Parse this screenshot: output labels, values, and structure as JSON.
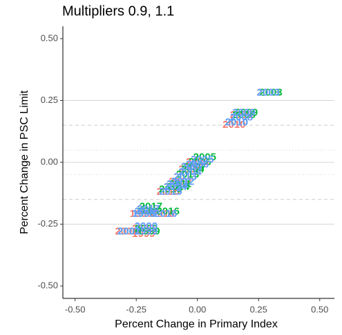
{
  "chart_data": {
    "type": "scatter",
    "title": "Multipliers 0.9, 1.1",
    "x_label": "Percent Change in Primary Index",
    "y_label": "Percent Change in PSC Limit",
    "xlim": [
      -0.55,
      0.56
    ],
    "ylim": [
      -0.55,
      0.55
    ],
    "xticks": [
      {
        "value": -0.5,
        "label": "-0.50"
      },
      {
        "value": -0.25,
        "label": "-0.25"
      },
      {
        "value": 0,
        "label": "0.00"
      },
      {
        "value": 0.25,
        "label": "0.25"
      },
      {
        "value": 0.5,
        "label": "0.50"
      }
    ],
    "yticks": [
      {
        "value": -0.5,
        "label": "-0.50"
      },
      {
        "value": -0.25,
        "label": "-0.25"
      },
      {
        "value": 0,
        "label": "0.00"
      },
      {
        "value": 0.25,
        "label": "0.25"
      },
      {
        "value": 0.5,
        "label": "0.50"
      }
    ],
    "hlines": [
      {
        "value": 0.25,
        "style": "solid"
      },
      {
        "value": 0,
        "style": "solid"
      },
      {
        "value": -0.25,
        "style": "solid"
      },
      {
        "value": 0.15,
        "style": "dashed"
      },
      {
        "value": -0.15,
        "style": "dashed"
      },
      {
        "value": 0.05,
        "style": "dotted"
      },
      {
        "value": -0.05,
        "style": "dotted"
      }
    ],
    "series": [
      {
        "color": "#F8766D",
        "labels": [
          "2003",
          "2009",
          "2008",
          "2010",
          "2005",
          "2006",
          "2007",
          "2004",
          "2013",
          "2012",
          "2011",
          "2014",
          "2015",
          "2017",
          "1998",
          "2001",
          "2016",
          "2000",
          "2002",
          "1999"
        ],
        "x": [
          0.29,
          0.19,
          0.18,
          0.15,
          0.02,
          0.0,
          -0.02,
          -0.03,
          -0.05,
          -0.07,
          -0.08,
          -0.09,
          -0.12,
          -0.2,
          -0.23,
          -0.21,
          -0.14,
          -0.22,
          -0.29,
          -0.22
        ],
        "y": [
          0.28,
          0.2,
          0.19,
          0.15,
          0.01,
          0.0,
          -0.02,
          -0.03,
          -0.06,
          -0.08,
          -0.09,
          -0.1,
          -0.12,
          -0.19,
          -0.21,
          -0.2,
          -0.21,
          -0.27,
          -0.28,
          -0.29
        ]
      },
      {
        "color": "#00BA38",
        "labels": [
          "2003",
          "2009",
          "2008",
          "2010",
          "2005",
          "2006",
          "2007",
          "2004",
          "2013",
          "2012",
          "2011",
          "2014",
          "2015",
          "2017",
          "1998",
          "2001",
          "2016",
          "2000",
          "2002",
          "1999"
        ],
        "x": [
          0.3,
          0.2,
          0.19,
          0.16,
          0.03,
          0.01,
          -0.01,
          -0.02,
          -0.04,
          -0.06,
          -0.07,
          -0.08,
          -0.11,
          -0.19,
          -0.22,
          -0.2,
          -0.12,
          -0.21,
          -0.28,
          -0.2
        ],
        "y": [
          0.28,
          0.2,
          0.19,
          0.16,
          0.02,
          0.0,
          -0.02,
          -0.03,
          -0.05,
          -0.08,
          -0.09,
          -0.1,
          -0.11,
          -0.18,
          -0.21,
          -0.2,
          -0.2,
          -0.27,
          -0.28,
          -0.28
        ]
      },
      {
        "color": "#619CFF",
        "labels": [
          "2003",
          "2009",
          "2008",
          "2010",
          "2005",
          "2006",
          "2007",
          "2004",
          "2013",
          "2012",
          "2011",
          "2014",
          "2015",
          "2017",
          "1998",
          "2001",
          "2016",
          "2000",
          "2002",
          "1999"
        ],
        "x": [
          0.29,
          0.19,
          0.18,
          0.16,
          0.02,
          0.0,
          -0.02,
          -0.03,
          -0.05,
          -0.06,
          -0.08,
          -0.09,
          -0.11,
          -0.2,
          -0.22,
          -0.21,
          -0.13,
          -0.21,
          -0.28,
          -0.21
        ],
        "y": [
          0.28,
          0.2,
          0.18,
          0.16,
          0.01,
          -0.01,
          -0.02,
          -0.04,
          -0.06,
          -0.08,
          -0.09,
          -0.1,
          -0.12,
          -0.19,
          -0.21,
          -0.2,
          -0.21,
          -0.26,
          -0.28,
          -0.28
        ]
      }
    ]
  }
}
